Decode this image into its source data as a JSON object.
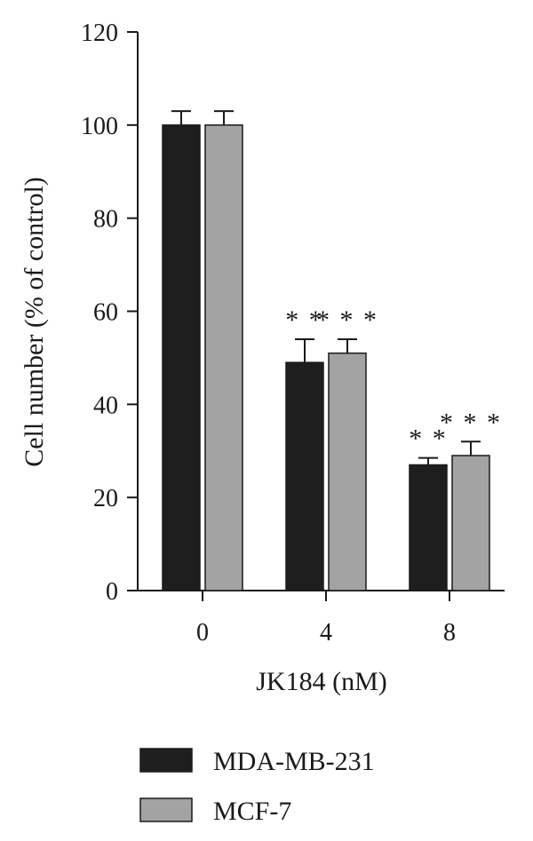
{
  "chart_data": {
    "type": "bar",
    "title": "",
    "xlabel": "JK184 (nM)",
    "ylabel": "Cell number (% of control)",
    "categories": [
      "0",
      "4",
      "8"
    ],
    "ylim": [
      0,
      120
    ],
    "yticks": [
      0,
      20,
      40,
      60,
      80,
      100,
      120
    ],
    "series": [
      {
        "name": "MDA-MB-231",
        "color": "#1e1e1e",
        "values": [
          100,
          49,
          27
        ],
        "errors": [
          3,
          5,
          1.5
        ],
        "significance": [
          "",
          "**",
          "**"
        ]
      },
      {
        "name": "MCF-7",
        "color": "#a3a3a3",
        "values": [
          100,
          51,
          29
        ],
        "errors": [
          3,
          3,
          3
        ],
        "significance": [
          "",
          "***",
          "***"
        ]
      }
    ],
    "legend_position": "bottom",
    "grid": false
  }
}
